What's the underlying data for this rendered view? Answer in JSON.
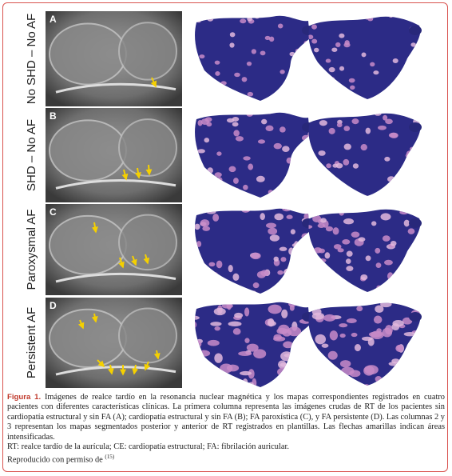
{
  "figure": {
    "panels": [
      {
        "letter": "A",
        "label": "No SHD – No AF"
      },
      {
        "letter": "B",
        "label": "SHD – No AF"
      },
      {
        "letter": "C",
        "label": "Paroxysmal AF"
      },
      {
        "letter": "D",
        "label": "Persistent AF"
      }
    ]
  },
  "caption": {
    "label": "Figura 1.",
    "text": "Imágenes de realce tardío en la resonancia nuclear magnética y los mapas correspondientes registrados en cuatro pacientes con diferentes características clínicas. La primera columna representa las imágenes crudas de RT de los pacientes sin cardiopatía estructural y sin FA (A); cardiopatía estructural y sin FA (B); FA paroxística (C), y FA persistente (D). Las columnas 2 y 3 representan los mapas segmentados posterior y anterior de RT registrados en plantillas. Las flechas amarillas indican áreas intensificadas.",
    "abbreviations": "RT: realce tardío de la aurícula; CE: cardiopatía estructural; FA: fibrilación auricular.",
    "credit": "Reproducido con permiso de",
    "reference": "(15)"
  }
}
